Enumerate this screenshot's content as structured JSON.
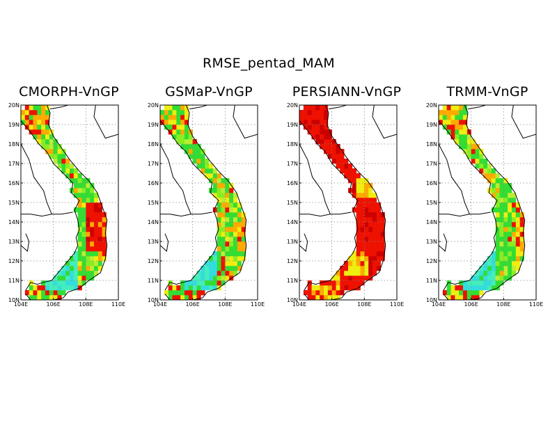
{
  "figure_title": "RMSE_pentad_MAM",
  "panels": [
    {
      "title": "CMORPH-VnGP",
      "profile": "cmorph"
    },
    {
      "title": "GSMaP-VnGP",
      "profile": "gsmap"
    },
    {
      "title": "PERSIANN-VnGP",
      "profile": "persiann"
    },
    {
      "title": "TRMM-VnGP",
      "profile": "trmm"
    }
  ],
  "axes": {
    "lon_range": [
      104,
      110
    ],
    "lat_range": [
      10,
      20
    ],
    "lon_ticks": [
      "104E",
      "106E",
      "108E",
      "110E"
    ],
    "lat_ticks": [
      "10N",
      "11N",
      "12N",
      "13N",
      "14N",
      "15N",
      "16N",
      "17N",
      "18N",
      "19N",
      "20N"
    ],
    "grid": "dotted"
  },
  "colors": {
    "cyan": "#33dddd",
    "aqua": "#44eebb",
    "green": "#33dd33",
    "lime": "#88ee22",
    "yellowgreen": "#bbee33",
    "yellow": "#eeee11",
    "orange": "#ffaa00",
    "red": "#ee1100",
    "darkred": "#cc0000",
    "coastline": "#000000"
  }
}
